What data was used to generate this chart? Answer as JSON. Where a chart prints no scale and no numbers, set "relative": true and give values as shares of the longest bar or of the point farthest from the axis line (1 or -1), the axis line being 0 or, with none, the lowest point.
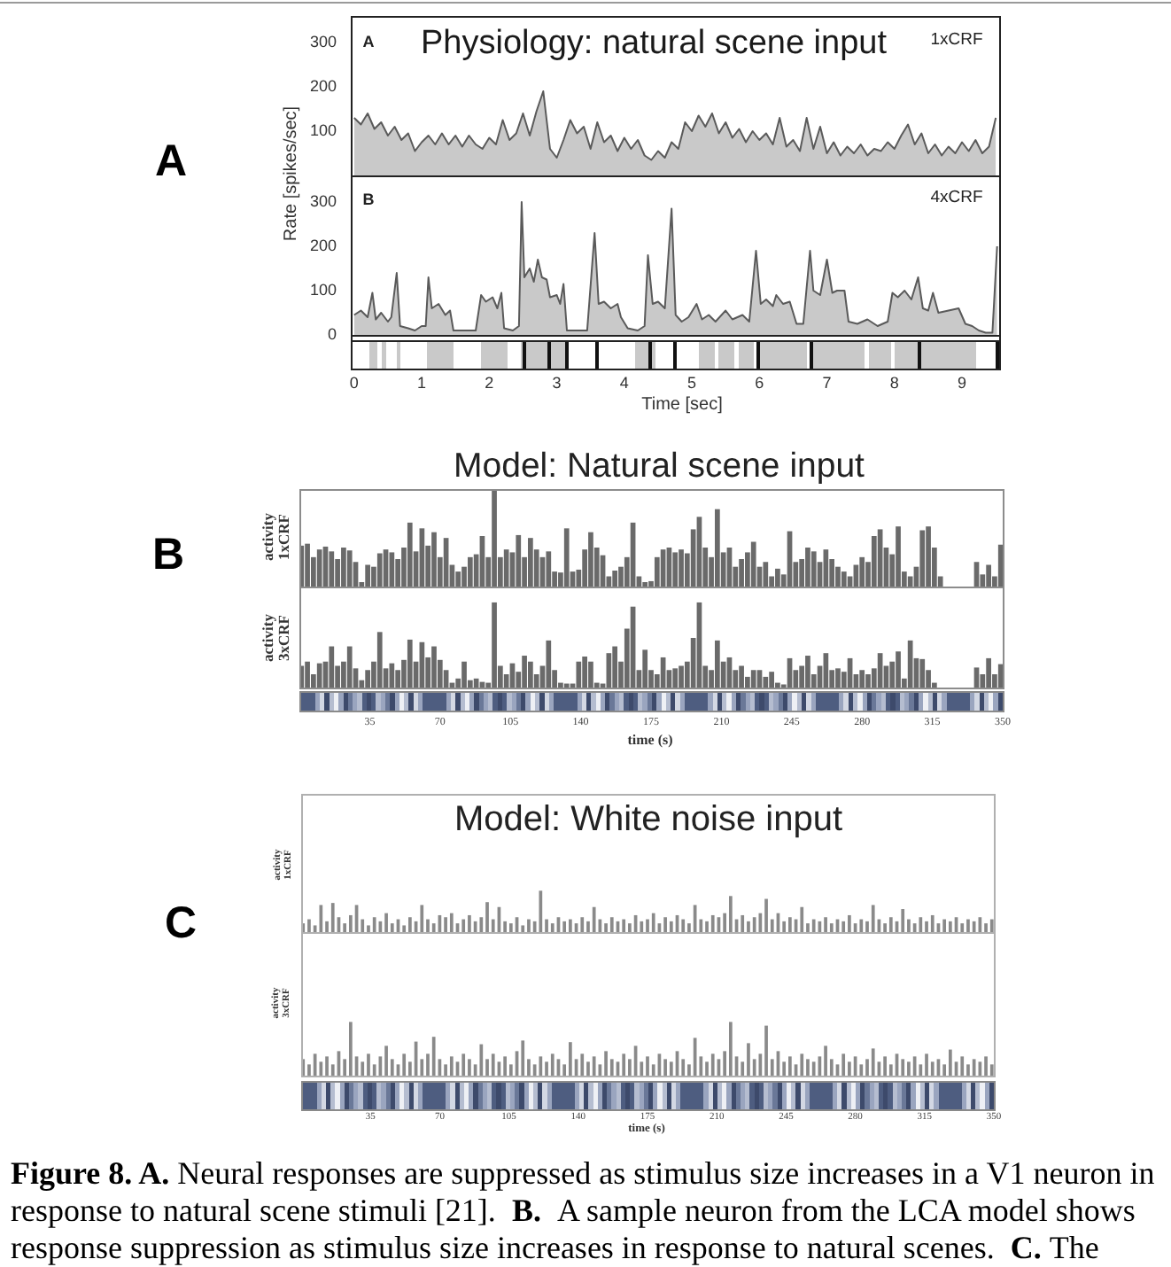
{
  "chart_data": [
    {
      "type": "area",
      "title": "Physiology: natural scene input",
      "ylabel": "Rate [spikes/sec]",
      "annotations": [
        "A",
        "A",
        "1xCRF"
      ],
      "tick_labels": "y",
      "xlim": [
        -0.05,
        9.55
      ],
      "ylim": [
        0,
        360
      ],
      "yticks": [
        100,
        200,
        300
      ],
      "x": [
        0,
        0.1,
        0.2,
        0.3,
        0.4,
        0.5,
        0.6,
        0.7,
        0.8,
        0.9,
        1,
        1.1,
        1.2,
        1.3,
        1.4,
        1.5,
        1.6,
        1.7,
        1.8,
        1.9,
        2,
        2.1,
        2.2,
        2.3,
        2.4,
        2.5,
        2.6,
        2.7,
        2.8,
        2.9,
        3,
        3.1,
        3.2,
        3.3,
        3.4,
        3.5,
        3.6,
        3.7,
        3.8,
        3.9,
        4,
        4.1,
        4.2,
        4.3,
        4.4,
        4.5,
        4.6,
        4.7,
        4.8,
        4.9,
        5,
        5.1,
        5.2,
        5.3,
        5.4,
        5.5,
        5.6,
        5.7,
        5.8,
        5.9,
        6,
        6.1,
        6.2,
        6.3,
        6.4,
        6.5,
        6.6,
        6.7,
        6.8,
        6.9,
        7,
        7.1,
        7.2,
        7.3,
        7.4,
        7.5,
        7.6,
        7.7,
        7.8,
        7.9,
        8,
        8.1,
        8.2,
        8.3,
        8.4,
        8.5,
        8.6,
        8.7,
        8.8,
        8.9,
        9,
        9.1,
        9.2,
        9.3,
        9.4,
        9.5
      ],
      "series": [
        {
          "color": "#5a5a5a",
          "values": [
            130,
            115,
            140,
            105,
            120,
            90,
            110,
            80,
            95,
            55,
            75,
            90,
            70,
            95,
            70,
            90,
            65,
            90,
            70,
            60,
            85,
            70,
            125,
            80,
            95,
            140,
            90,
            145,
            190,
            60,
            40,
            80,
            125,
            95,
            110,
            60,
            120,
            75,
            90,
            55,
            85,
            60,
            80,
            45,
            35,
            55,
            40,
            75,
            60,
            120,
            100,
            135,
            110,
            140,
            95,
            120,
            85,
            105,
            75,
            100,
            80,
            95,
            70,
            130,
            65,
            80,
            55,
            130,
            60,
            110,
            50,
            75,
            45,
            65,
            50,
            70,
            45,
            60,
            55,
            75,
            60,
            90,
            115,
            70,
            95,
            50,
            70,
            45,
            65,
            50,
            75,
            55,
            80,
            50,
            65,
            130
          ]
        }
      ]
    },
    {
      "type": "area",
      "xlabel": "Time [sec]",
      "annotations": [
        "B",
        "4xCRF"
      ],
      "xlim": [
        -0.05,
        9.55
      ],
      "xticks": [
        0,
        1,
        2,
        3,
        4,
        5,
        6,
        7,
        8,
        9
      ],
      "ylim": [
        0,
        360
      ],
      "yticks": [
        0,
        100,
        200,
        300
      ],
      "x": [
        0,
        0.1,
        0.2,
        0.27,
        0.32,
        0.4,
        0.5,
        0.55,
        0.63,
        0.68,
        0.8,
        0.9,
        1,
        1.06,
        1.1,
        1.15,
        1.25,
        1.35,
        1.42,
        1.47,
        1.6,
        1.7,
        1.8,
        1.88,
        1.95,
        2.05,
        2.12,
        2.18,
        2.22,
        2.35,
        2.44,
        2.48,
        2.52,
        2.6,
        2.66,
        2.72,
        2.78,
        2.85,
        2.9,
        3,
        3.05,
        3.1,
        3.15,
        3.3,
        3.45,
        3.56,
        3.62,
        3.7,
        3.8,
        3.9,
        3.95,
        4.05,
        4.2,
        4.3,
        4.35,
        4.42,
        4.5,
        4.6,
        4.7,
        4.76,
        4.85,
        4.95,
        5.07,
        5.15,
        5.25,
        5.35,
        5.5,
        5.6,
        5.75,
        5.85,
        5.95,
        6.02,
        6.1,
        6.2,
        6.25,
        6.35,
        6.45,
        6.55,
        6.65,
        6.75,
        6.8,
        6.9,
        7,
        7.08,
        7.15,
        7.26,
        7.32,
        7.45,
        7.6,
        7.75,
        7.9,
        7.97,
        8.05,
        8.15,
        8.25,
        8.35,
        8.42,
        8.5,
        8.57,
        8.65,
        8.8,
        8.95,
        9.05,
        9.15,
        9.25,
        9.35,
        9.45,
        9.52
      ],
      "series": [
        {
          "color": "#5a5a5a",
          "values": [
            45,
            55,
            40,
            95,
            35,
            50,
            30,
            40,
            140,
            20,
            15,
            10,
            20,
            20,
            130,
            60,
            70,
            45,
            55,
            10,
            10,
            10,
            10,
            90,
            75,
            85,
            60,
            95,
            15,
            10,
            20,
            300,
            130,
            150,
            120,
            170,
            130,
            125,
            85,
            90,
            70,
            115,
            10,
            10,
            10,
            230,
            70,
            75,
            60,
            70,
            40,
            15,
            10,
            20,
            180,
            70,
            75,
            60,
            285,
            45,
            30,
            40,
            70,
            35,
            45,
            30,
            55,
            35,
            45,
            30,
            190,
            70,
            80,
            65,
            90,
            70,
            75,
            25,
            25,
            190,
            100,
            90,
            170,
            95,
            100,
            100,
            30,
            25,
            35,
            20,
            30,
            95,
            85,
            100,
            80,
            130,
            60,
            55,
            95,
            50,
            55,
            60,
            25,
            20,
            10,
            5,
            5,
            200
          ]
        }
      ]
    },
    {
      "type": "bar",
      "title": "Model: Natural scene input",
      "ylabel": "activity\n1xCRF",
      "annotations": [
        "B"
      ],
      "relative": true,
      "tick_labels": false,
      "xlim": [
        0,
        350
      ],
      "x": [
        1,
        4,
        7,
        10,
        13,
        16,
        19,
        22,
        25,
        28,
        31,
        34,
        37,
        40,
        43,
        46,
        49,
        52,
        55,
        58,
        61,
        64,
        67,
        70,
        73,
        76,
        79,
        82,
        85,
        88,
        91,
        94,
        97,
        100,
        103,
        106,
        109,
        112,
        115,
        118,
        121,
        124,
        127,
        130,
        133,
        136,
        139,
        142,
        145,
        148,
        151,
        154,
        157,
        160,
        163,
        166,
        169,
        172,
        175,
        178,
        181,
        184,
        187,
        190,
        193,
        196,
        199,
        202,
        205,
        208,
        211,
        214,
        217,
        220,
        223,
        226,
        229,
        232,
        235,
        238,
        241,
        244,
        247,
        250,
        253,
        256,
        259,
        262,
        265,
        268,
        271,
        274,
        277,
        280,
        283,
        286,
        289,
        292,
        295,
        298,
        301,
        304,
        307,
        310,
        313,
        316,
        319,
        337,
        340,
        343,
        346,
        349
      ],
      "series": [
        {
          "color": "#6a6a6a",
          "values": [
            0.42,
            0.44,
            0.3,
            0.38,
            0.41,
            0.36,
            0.28,
            0.4,
            0.37,
            0.25,
            0.04,
            0.22,
            0.2,
            0.34,
            0.38,
            0.35,
            0.28,
            0.4,
            0.66,
            0.36,
            0.6,
            0.42,
            0.56,
            0.3,
            0.5,
            0.22,
            0.15,
            0.2,
            0.3,
            0.33,
            0.52,
            0.3,
            1,
            0.3,
            0.38,
            0.35,
            0.53,
            0.3,
            0.5,
            0.38,
            0.3,
            0.36,
            0.15,
            0.14,
            0.6,
            0.15,
            0.17,
            0.38,
            0.56,
            0.4,
            0.32,
            0.1,
            0.16,
            0.2,
            0.3,
            0.66,
            0.1,
            0.04,
            0.05,
            0.3,
            0.38,
            0.4,
            0.35,
            0.38,
            0.34,
            0.59,
            0.72,
            0.4,
            0.3,
            0.8,
            0.35,
            0.4,
            0.2,
            0.28,
            0.35,
            0.46,
            0.2,
            0.25,
            0.1,
            0.18,
            0.12,
            0.57,
            0.25,
            0.28,
            0.4,
            0.36,
            0.25,
            0.38,
            0.28,
            0.2,
            0.15,
            0.1,
            0.22,
            0.3,
            0.25,
            0.52,
            0.59,
            0.4,
            0.33,
            0.62,
            0.15,
            0.1,
            0.2,
            0.58,
            0.62,
            0.4,
            0.1,
            0.25,
            0.12,
            0.22,
            0.1,
            0.43
          ]
        }
      ]
    },
    {
      "type": "bar",
      "ylabel": "activity\n3xCRF",
      "xlabel": "time (s)",
      "relative": true,
      "tick_labels": "x",
      "xlim": [
        0,
        350
      ],
      "xticks": [
        35,
        70,
        105,
        140,
        175,
        210,
        245,
        280,
        315,
        350
      ],
      "x": [
        1,
        4,
        7,
        10,
        13,
        16,
        19,
        22,
        25,
        28,
        31,
        34,
        37,
        40,
        43,
        46,
        49,
        52,
        55,
        58,
        61,
        64,
        67,
        70,
        73,
        76,
        79,
        82,
        85,
        88,
        91,
        94,
        97,
        100,
        103,
        106,
        109,
        112,
        115,
        118,
        121,
        124,
        127,
        130,
        133,
        136,
        139,
        142,
        145,
        148,
        151,
        154,
        157,
        160,
        163,
        166,
        169,
        172,
        175,
        178,
        181,
        184,
        187,
        190,
        193,
        196,
        199,
        202,
        205,
        208,
        211,
        214,
        217,
        220,
        223,
        226,
        229,
        232,
        235,
        238,
        241,
        244,
        247,
        250,
        253,
        256,
        259,
        262,
        265,
        268,
        271,
        274,
        277,
        280,
        283,
        286,
        289,
        292,
        295,
        298,
        301,
        304,
        307,
        310,
        313,
        316,
        337,
        340,
        343,
        346,
        349
      ],
      "series": [
        {
          "color": "#6a6a6a",
          "values": [
            0.25,
            0.3,
            0.15,
            0.28,
            0.3,
            0.48,
            0.25,
            0.3,
            0.48,
            0.22,
            0.08,
            0.2,
            0.3,
            0.65,
            0.22,
            0.28,
            0.2,
            0.32,
            0.56,
            0.3,
            0.53,
            0.35,
            0.48,
            0.32,
            0.2,
            0.05,
            0.1,
            0.3,
            0.08,
            0.1,
            0.06,
            0.05,
            1,
            0.25,
            0.15,
            0.28,
            0.18,
            0.37,
            0.3,
            0.15,
            0.25,
            0.55,
            0.2,
            0.05,
            0.04,
            0.04,
            0.3,
            0.36,
            0.3,
            0.05,
            0.04,
            0.4,
            0.48,
            0.3,
            0.69,
            0.95,
            0.2,
            0.44,
            0.2,
            0.15,
            0.35,
            0.2,
            0.22,
            0.25,
            0.3,
            0.58,
            1,
            0.25,
            0.2,
            0.55,
            0.3,
            0.35,
            0.2,
            0.25,
            0.12,
            0.2,
            0.2,
            0.12,
            0.18,
            0.05,
            0.03,
            0.34,
            0.2,
            0.25,
            0.37,
            0.15,
            0.25,
            0.4,
            0.2,
            0.22,
            0.18,
            0.34,
            0.15,
            0.2,
            0.15,
            0.22,
            0.4,
            0.25,
            0.3,
            0.42,
            0.1,
            0.55,
            0.34,
            0.33,
            0.2,
            0.05,
            0.23,
            0.15,
            0.34,
            0.15,
            0.27
          ]
        }
      ]
    },
    {
      "type": "bar",
      "title": "Model: White noise input",
      "ylabel": "activity\n1xCRF",
      "annotations": [
        "C"
      ],
      "relative": true,
      "tick_labels": false,
      "xlim": [
        0,
        350
      ],
      "x": [
        1,
        4,
        7,
        10,
        13,
        16,
        19,
        22,
        25,
        28,
        31,
        34,
        37,
        40,
        43,
        46,
        49,
        52,
        55,
        58,
        61,
        64,
        67,
        70,
        73,
        76,
        79,
        82,
        85,
        88,
        91,
        94,
        97,
        100,
        103,
        106,
        109,
        112,
        115,
        118,
        121,
        124,
        127,
        130,
        133,
        136,
        139,
        142,
        145,
        148,
        151,
        154,
        157,
        160,
        163,
        166,
        169,
        172,
        175,
        178,
        181,
        184,
        187,
        190,
        193,
        196,
        199,
        202,
        205,
        208,
        211,
        214,
        217,
        220,
        223,
        226,
        229,
        232,
        235,
        238,
        241,
        244,
        247,
        250,
        253,
        256,
        259,
        262,
        265,
        268,
        271,
        274,
        277,
        280,
        283,
        286,
        289,
        292,
        295,
        298,
        301,
        304,
        307,
        310,
        313,
        316,
        319,
        322,
        325,
        328,
        331,
        334,
        337,
        340,
        343,
        346,
        349
      ],
      "series": [
        {
          "color": "#8a8a8a",
          "values": [
            0.2,
            0.3,
            0.15,
            0.65,
            0.25,
            0.7,
            0.35,
            0.2,
            0.4,
            0.65,
            0.3,
            0.15,
            0.35,
            0.25,
            0.45,
            0.2,
            0.3,
            0.15,
            0.35,
            0.25,
            0.65,
            0.3,
            0.2,
            0.4,
            0.35,
            0.45,
            0.2,
            0.3,
            0.4,
            0.25,
            0.35,
            0.72,
            0.3,
            0.6,
            0.25,
            0.2,
            0.35,
            0.15,
            0.3,
            0.25,
            1,
            0.3,
            0.2,
            0.35,
            0.25,
            0.3,
            0.2,
            0.35,
            0.25,
            0.6,
            0.3,
            0.2,
            0.35,
            0.25,
            0.3,
            0.2,
            0.4,
            0.25,
            0.3,
            0.45,
            0.2,
            0.35,
            0.25,
            0.4,
            0.3,
            0.2,
            0.65,
            0.3,
            0.25,
            0.4,
            0.35,
            0.45,
            0.87,
            0.3,
            0.4,
            0.25,
            0.35,
            0.45,
            0.8,
            0.3,
            0.45,
            0.25,
            0.35,
            0.3,
            0.6,
            0.2,
            0.3,
            0.25,
            0.35,
            0.2,
            0.3,
            0.25,
            0.4,
            0.2,
            0.3,
            0.25,
            0.65,
            0.3,
            0.2,
            0.35,
            0.25,
            0.55,
            0.3,
            0.2,
            0.35,
            0.25,
            0.4,
            0.2,
            0.3,
            0.25,
            0.35,
            0.2,
            0.3,
            0.25,
            0.35,
            0.2,
            0.3
          ]
        }
      ]
    },
    {
      "type": "bar",
      "ylabel": "activity\n3xCRF",
      "xlabel": "time (s)",
      "relative": true,
      "tick_labels": "x",
      "xlim": [
        0,
        350
      ],
      "xticks": [
        35,
        70,
        105,
        140,
        175,
        210,
        245,
        280,
        315,
        350
      ],
      "annotations": [
        "Figure 8. A.",
        "Neural responses are suppressed as stimulus size increases in a V1 neuron in",
        "response to natural scene stimuli [21].",
        "B.",
        "A sample neuron from the LCA model shows",
        "response suppression as stimulus size increases in response to natural scenes.",
        "C.",
        "The"
      ],
      "x": [
        1,
        4,
        7,
        10,
        13,
        16,
        19,
        22,
        25,
        28,
        31,
        34,
        37,
        40,
        43,
        46,
        49,
        52,
        55,
        58,
        61,
        64,
        67,
        70,
        73,
        76,
        79,
        82,
        85,
        88,
        91,
        94,
        97,
        100,
        103,
        106,
        109,
        112,
        115,
        118,
        121,
        124,
        127,
        130,
        133,
        136,
        139,
        142,
        145,
        148,
        151,
        154,
        157,
        160,
        163,
        166,
        169,
        172,
        175,
        178,
        181,
        184,
        187,
        190,
        193,
        196,
        199,
        202,
        205,
        208,
        211,
        214,
        217,
        220,
        223,
        226,
        229,
        232,
        235,
        238,
        241,
        244,
        247,
        250,
        253,
        256,
        259,
        262,
        265,
        268,
        271,
        274,
        277,
        280,
        283,
        286,
        289,
        292,
        295,
        298,
        301,
        304,
        307,
        310,
        313,
        316,
        319,
        322,
        325,
        328,
        331,
        334,
        337,
        340,
        343,
        346,
        349
      ],
      "series": [
        {
          "color": "#8a8a8a",
          "values": [
            0.3,
            0.2,
            0.4,
            0.25,
            0.35,
            0.2,
            0.45,
            0.3,
            1,
            0.35,
            0.25,
            0.4,
            0.2,
            0.35,
            0.55,
            0.3,
            0.2,
            0.4,
            0.25,
            0.63,
            0.3,
            0.4,
            0.72,
            0.3,
            0.2,
            0.35,
            0.25,
            0.4,
            0.3,
            0.2,
            0.58,
            0.3,
            0.4,
            0.25,
            0.35,
            0.2,
            0.45,
            0.65,
            0.3,
            0.2,
            0.35,
            0.25,
            0.4,
            0.3,
            0.2,
            0.62,
            0.3,
            0.4,
            0.25,
            0.35,
            0.2,
            0.45,
            0.3,
            0.25,
            0.4,
            0.3,
            0.55,
            0.25,
            0.35,
            0.2,
            0.4,
            0.3,
            0.25,
            0.45,
            0.3,
            0.2,
            0.7,
            0.35,
            0.25,
            0.4,
            0.3,
            0.45,
            1,
            0.35,
            0.25,
            0.6,
            0.3,
            0.4,
            0.93,
            0.3,
            0.45,
            0.25,
            0.35,
            0.2,
            0.4,
            0.3,
            0.25,
            0.35,
            0.55,
            0.3,
            0.2,
            0.4,
            0.25,
            0.35,
            0.2,
            0.3,
            0.5,
            0.25,
            0.35,
            0.2,
            0.4,
            0.3,
            0.25,
            0.35,
            0.2,
            0.4,
            0.25,
            0.3,
            0.2,
            0.48,
            0.25,
            0.35,
            0.2,
            0.3,
            0.25,
            0.35,
            0.2
          ]
        }
      ]
    }
  ]
}
